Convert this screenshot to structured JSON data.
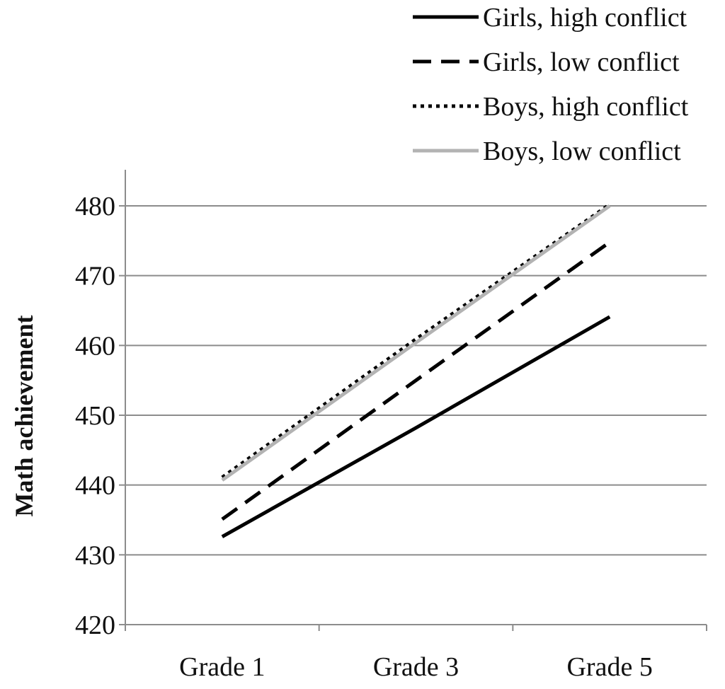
{
  "chart_data": {
    "type": "line",
    "categories": [
      "Grade 1",
      "Grade 3",
      "Grade 5"
    ],
    "ylabel": "Math achievement",
    "xlabel": "",
    "ylim": [
      420,
      480
    ],
    "yticks": [
      420,
      430,
      440,
      450,
      460,
      470,
      480
    ],
    "grid": true,
    "legend_position": "top-right",
    "series": [
      {
        "name": "Girls, high conflict",
        "values": [
          432.6,
          448.2,
          464.1
        ],
        "color": "#000000",
        "style": "solid"
      },
      {
        "name": "Girls, low conflict",
        "values": [
          435.1,
          455.0,
          474.8
        ],
        "color": "#000000",
        "style": "dashed"
      },
      {
        "name": "Boys, high conflict",
        "values": [
          441.1,
          460.9,
          480.2
        ],
        "color": "#000000",
        "style": "dotted"
      },
      {
        "name": "Boys, low conflict",
        "values": [
          440.7,
          460.4,
          480.0
        ],
        "color": "#b3b3b3",
        "style": "solid"
      }
    ]
  }
}
